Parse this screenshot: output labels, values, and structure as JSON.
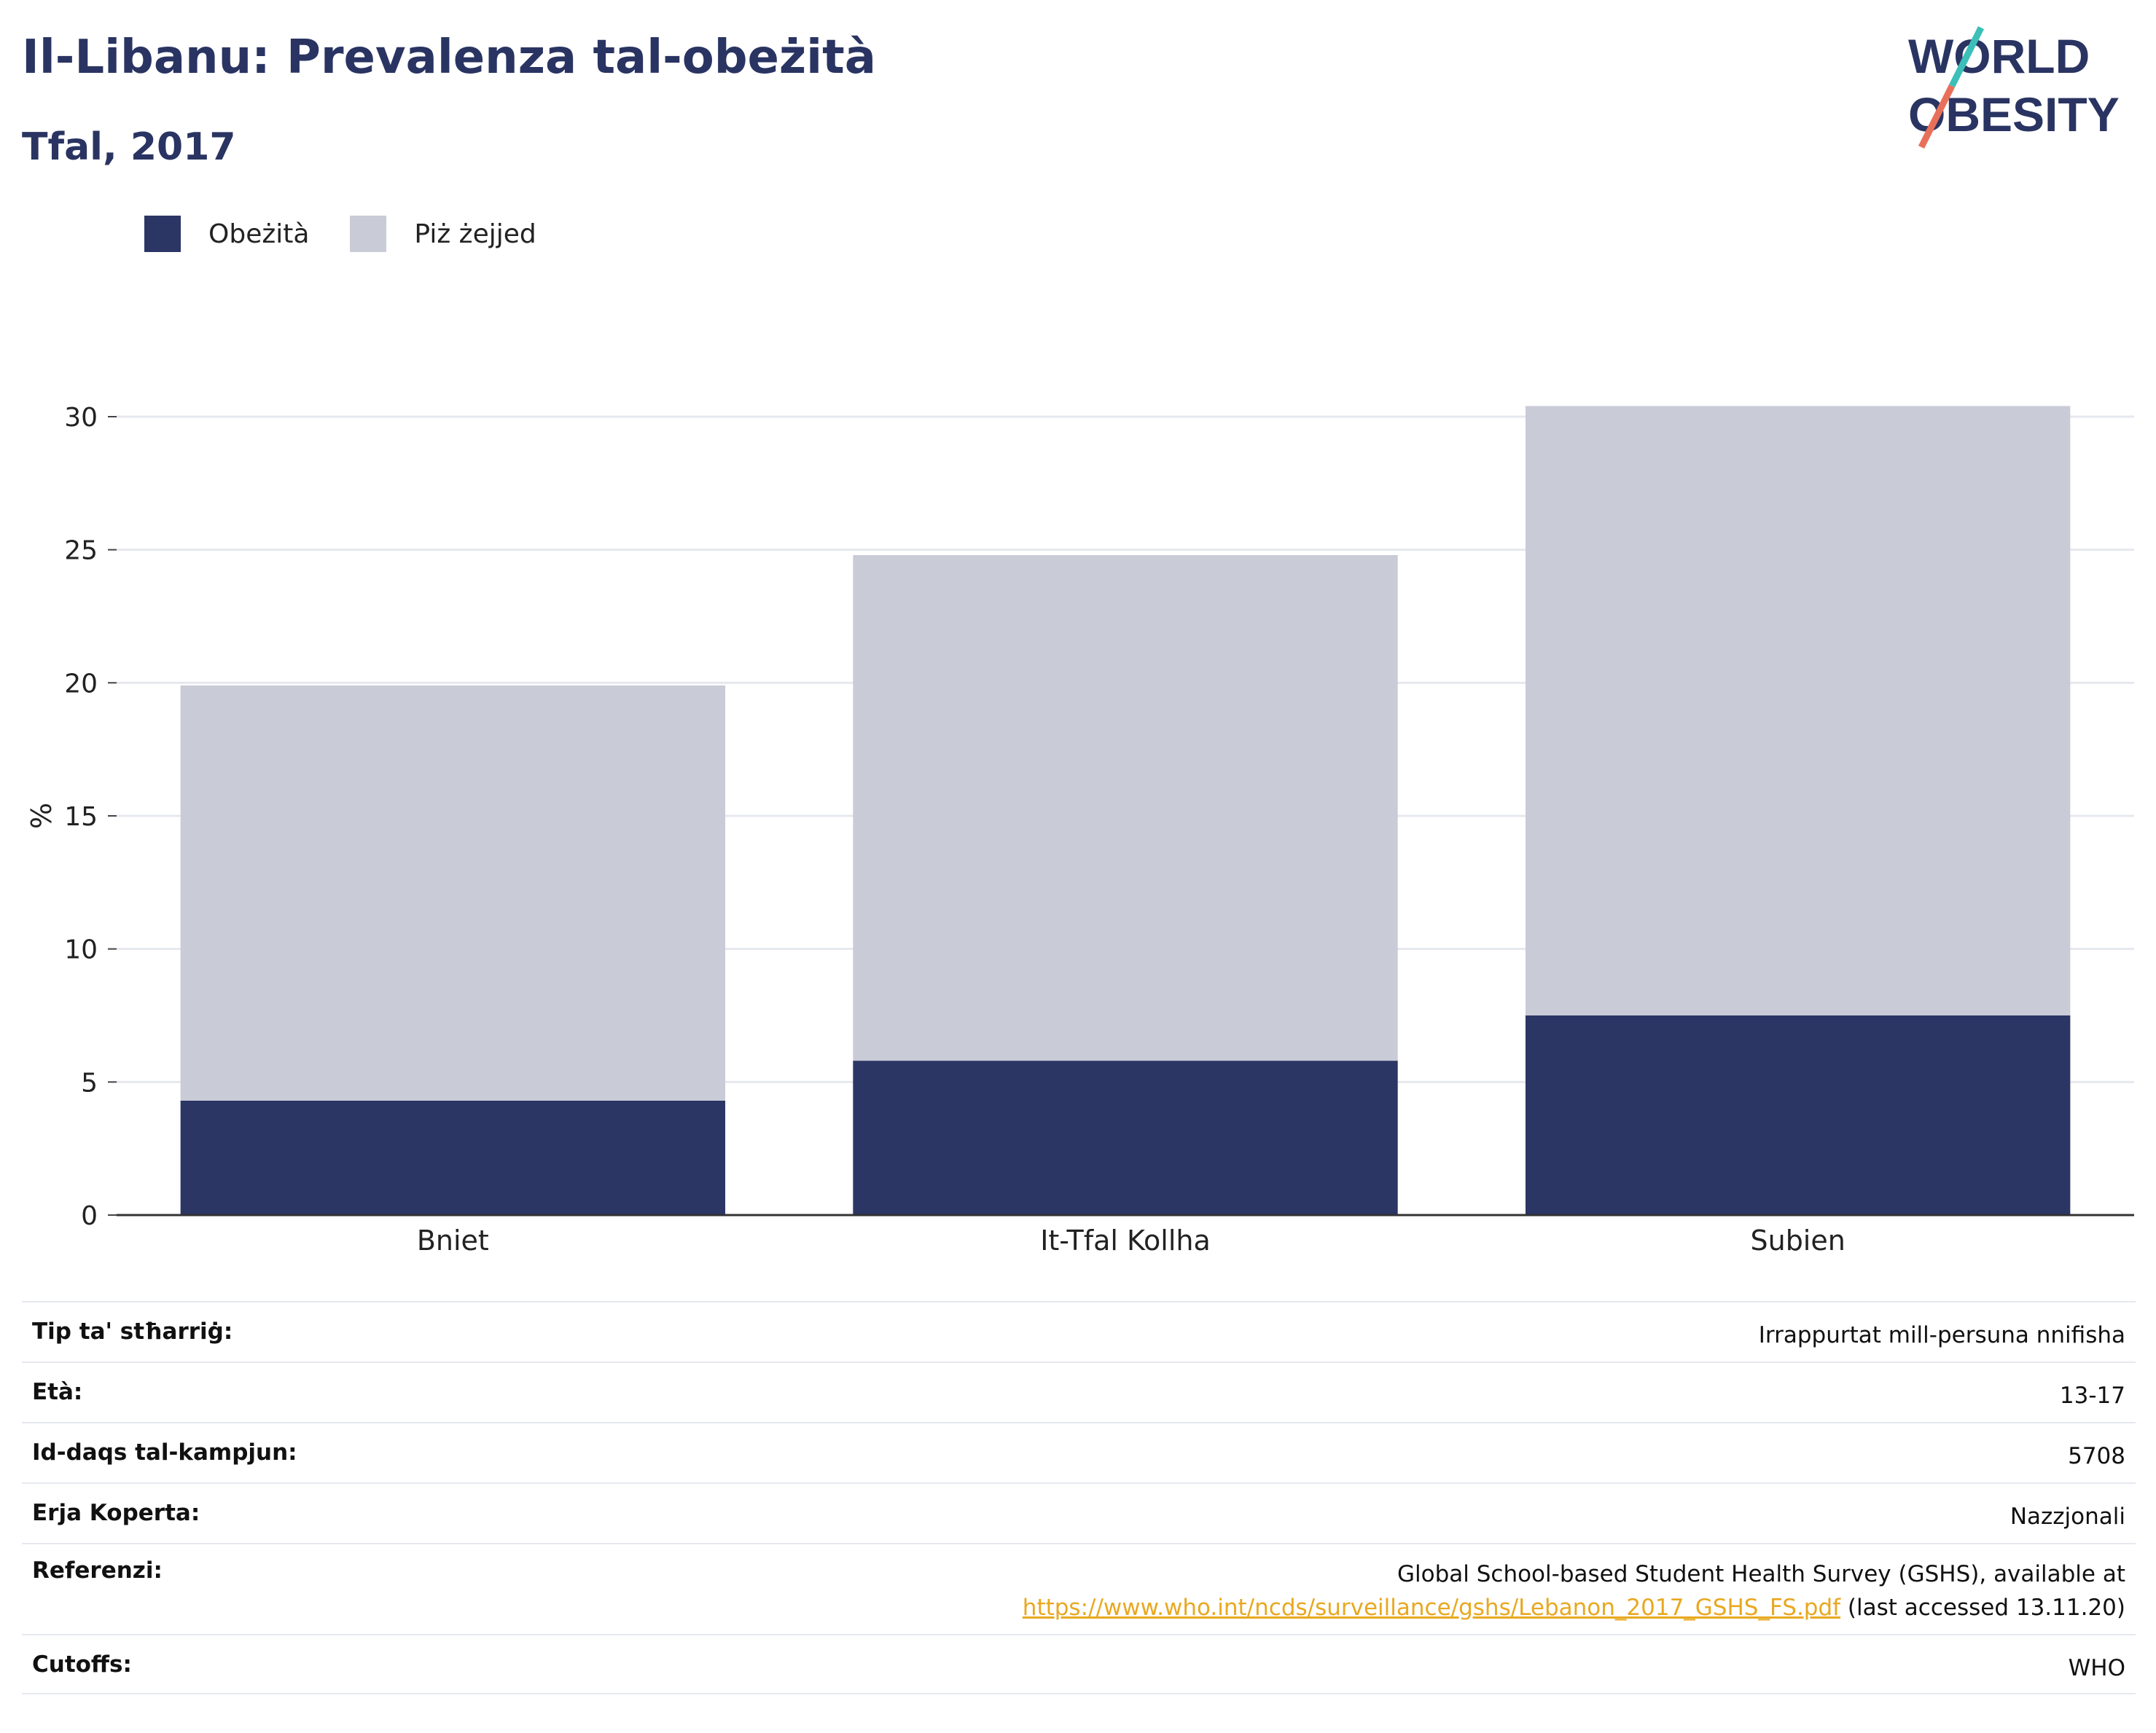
{
  "header": {
    "title": "Il-Libanu: Prevalenza tal-obeżità",
    "subtitle": "Tfal, 2017"
  },
  "logo": {
    "line1": "WORLD",
    "line2": "OBESITY"
  },
  "colors": {
    "obesity": "#2b3665",
    "overweight": "#c9cbd7",
    "title": "#2a3462",
    "link": "#e8a820",
    "logo_teal": "#3bbfb8",
    "logo_coral": "#e8705a"
  },
  "legend": [
    {
      "label": "Obeżità",
      "color": "#2b3665"
    },
    {
      "label": "Piż żejjed",
      "color": "#c9cbd7"
    }
  ],
  "chart_data": {
    "type": "bar",
    "stacked": true,
    "categories": [
      "Bniet",
      "It-Tfal Kollha",
      "Subien"
    ],
    "series": [
      {
        "name": "Obeżità",
        "values": [
          4.3,
          5.8,
          7.5
        ]
      },
      {
        "name": "Piż żejjed",
        "values": [
          15.6,
          19.0,
          22.9
        ]
      }
    ],
    "totals": [
      19.9,
      24.8,
      30.4
    ],
    "ylabel": "%",
    "xlabel": "",
    "ylim": [
      0,
      30
    ],
    "yticks": [
      0,
      5,
      10,
      15,
      20,
      25,
      30
    ],
    "grid": true,
    "legend_position": "top-left"
  },
  "info": [
    {
      "key": "Tip ta' stħarriġ:",
      "value": "Irrappurtat mill-persuna nnifisha"
    },
    {
      "key": "Età:",
      "value": "13-17"
    },
    {
      "key": "Id-daqs tal-kampjun:",
      "value": "5708"
    },
    {
      "key": "Erja Koperta:",
      "value": "Nazzjonali"
    },
    {
      "key": "Referenzi:",
      "value_line1": "Global School-based Student Health Survey (GSHS), available at",
      "link": "https://www.who.int/ncds/surveillance/gshs/Lebanon_2017_GSHS_FS.pdf",
      "value_suffix": " (last accessed 13.11.20)"
    },
    {
      "key": "Cutoffs:",
      "value": "WHO"
    }
  ]
}
